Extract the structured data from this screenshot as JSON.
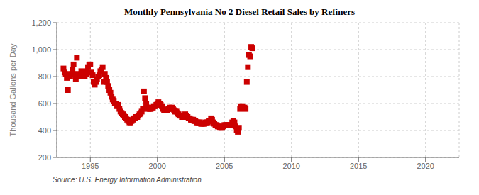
{
  "chart_data": {
    "type": "scatter",
    "title": "Monthly Pennsylvania No 2 Diesel Retail Sales by Refiners",
    "ylabel": "Thousand Gallons per Day",
    "annotations": [
      "Source: U.S. Energy Information Administration"
    ],
    "color": "#cc0000",
    "marker": "square",
    "grid": true,
    "xlim": [
      1992.5,
      2022.5
    ],
    "ylim": [
      200,
      1200
    ],
    "xticks": [
      1995,
      2000,
      2005,
      2010,
      2015,
      2020
    ],
    "yticks": [
      200,
      400,
      600,
      800,
      {
        "value": 1000,
        "label": "1,000"
      },
      {
        "value": 1200,
        "label": "1,200"
      }
    ],
    "x": [
      1993.0,
      1993.08,
      1993.17,
      1993.25,
      1993.33,
      1993.42,
      1993.5,
      1993.58,
      1993.67,
      1993.75,
      1993.83,
      1993.92,
      1994.0,
      1994.08,
      1994.17,
      1994.25,
      1994.33,
      1994.42,
      1994.5,
      1994.58,
      1994.67,
      1994.75,
      1994.83,
      1994.92,
      1995.0,
      1995.08,
      1995.17,
      1995.25,
      1995.33,
      1995.42,
      1995.5,
      1995.58,
      1995.67,
      1995.75,
      1995.83,
      1995.92,
      1996.0,
      1996.08,
      1996.17,
      1996.25,
      1996.33,
      1996.42,
      1996.5,
      1996.58,
      1996.67,
      1996.75,
      1996.83,
      1996.92,
      1997.0,
      1997.08,
      1997.17,
      1997.25,
      1997.33,
      1997.42,
      1997.5,
      1997.58,
      1997.67,
      1997.75,
      1997.83,
      1997.92,
      1998.0,
      1998.08,
      1998.17,
      1998.25,
      1998.33,
      1998.42,
      1998.5,
      1998.58,
      1998.67,
      1998.75,
      1998.83,
      1998.92,
      1999.0,
      1999.08,
      1999.17,
      1999.25,
      1999.33,
      1999.42,
      1999.5,
      1999.58,
      1999.67,
      1999.75,
      1999.83,
      1999.92,
      2000.0,
      2000.08,
      2000.17,
      2000.25,
      2000.33,
      2000.42,
      2000.5,
      2000.58,
      2000.67,
      2000.75,
      2000.83,
      2000.92,
      2001.0,
      2001.08,
      2001.17,
      2001.25,
      2001.33,
      2001.42,
      2001.5,
      2001.58,
      2001.67,
      2001.75,
      2001.83,
      2001.92,
      2002.0,
      2002.08,
      2002.17,
      2002.25,
      2002.33,
      2002.42,
      2002.5,
      2002.58,
      2002.67,
      2002.75,
      2002.83,
      2002.92,
      2003.0,
      2003.08,
      2003.17,
      2003.25,
      2003.33,
      2003.42,
      2003.5,
      2003.58,
      2003.67,
      2003.75,
      2003.83,
      2003.92,
      2004.0,
      2004.08,
      2004.17,
      2004.25,
      2004.33,
      2004.42,
      2004.5,
      2004.58,
      2004.67,
      2004.75,
      2004.83,
      2004.92,
      2005.0,
      2005.08,
      2005.17,
      2005.25,
      2005.33,
      2005.42,
      2005.5,
      2005.58,
      2005.67,
      2005.75,
      2005.83,
      2005.92,
      2006.0,
      2006.08,
      2006.17,
      2006.25,
      2006.33,
      2006.42,
      2006.5,
      2006.58,
      2006.67,
      2006.75,
      2006.83,
      2006.92,
      2007.0,
      2007.08
    ],
    "values": [
      860,
      830,
      820,
      790,
      700,
      810,
      800,
      820,
      850,
      890,
      820,
      780,
      940,
      810,
      800,
      820,
      840,
      820,
      800,
      800,
      820,
      840,
      870,
      890,
      890,
      830,
      810,
      760,
      740,
      760,
      780,
      800,
      810,
      840,
      850,
      870,
      760,
      820,
      790,
      760,
      730,
      700,
      680,
      650,
      630,
      620,
      600,
      600,
      580,
      590,
      560,
      540,
      530,
      520,
      510,
      500,
      490,
      480,
      470,
      460,
      460,
      470,
      480,
      490,
      490,
      500,
      500,
      510,
      520,
      530,
      540,
      560,
      690,
      640,
      600,
      570,
      560,
      560,
      560,
      570,
      570,
      580,
      580,
      590,
      600,
      610,
      600,
      590,
      580,
      560,
      550,
      550,
      550,
      550,
      560,
      570,
      560,
      570,
      560,
      550,
      540,
      540,
      530,
      520,
      510,
      510,
      500,
      500,
      510,
      520,
      510,
      500,
      490,
      490,
      480,
      480,
      480,
      470,
      470,
      460,
      460,
      460,
      460,
      450,
      450,
      450,
      450,
      460,
      460,
      460,
      470,
      470,
      490,
      480,
      460,
      450,
      440,
      440,
      430,
      430,
      420,
      420,
      420,
      430,
      440,
      440,
      440,
      440,
      440,
      440,
      440,
      460,
      470,
      460,
      430,
      400,
      390,
      420,
      560,
      580,
      580,
      570,
      570,
      560,
      760,
      870,
      960,
      950,
      1020,
      1010
    ]
  }
}
